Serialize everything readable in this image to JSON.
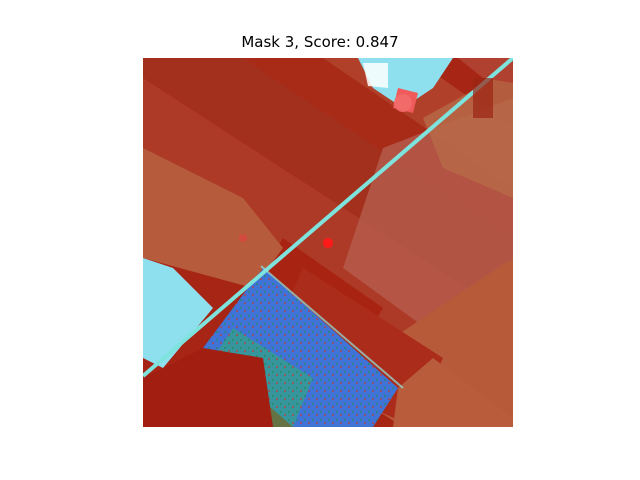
{
  "figure": {
    "title": "Mask 3, Score: 0.847"
  },
  "image": {
    "palette": {
      "field_dark_red": "#a11e10",
      "field_red": "#b42818",
      "field_brown": "#b75b3d",
      "field_rose": "#b5564f",
      "road": "#7ee3dc",
      "water_cyan": "#8fe0ee",
      "mask_blue": "#3f73d6",
      "mask_green": "#2fb36c",
      "prompt_point": "#ff1a1a"
    }
  }
}
